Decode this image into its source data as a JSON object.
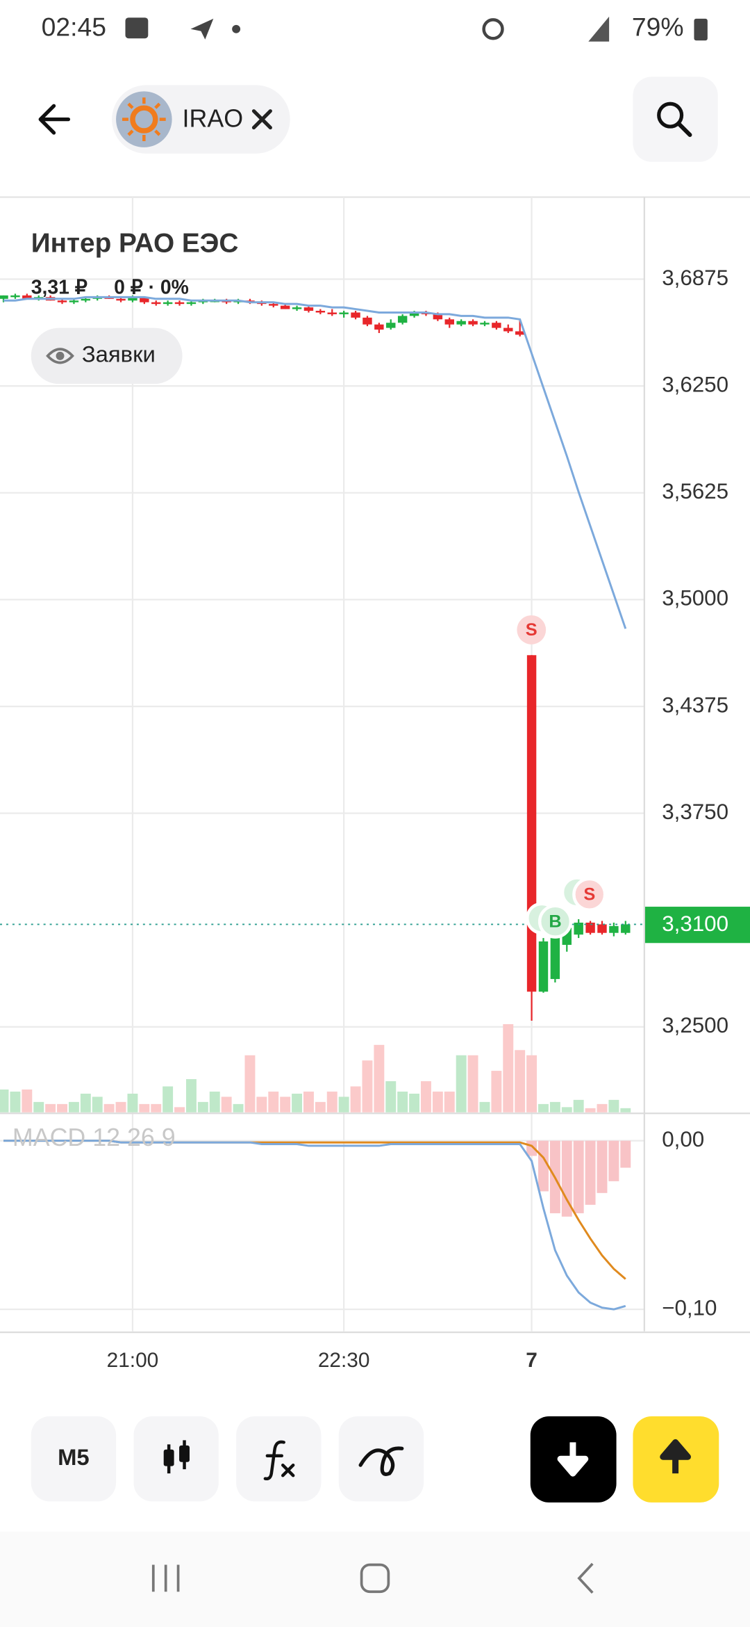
{
  "status_bar": {
    "time": "02:45",
    "battery": "79%"
  },
  "header": {
    "ticker": "IRAO"
  },
  "chart_controls": {
    "orders": "Заявки",
    "interval": "M5"
  },
  "trade_markers": [
    "S",
    "B",
    "S"
  ],
  "chart_data": [
    {
      "type": "candlestick",
      "title": "Интер РАО ЕЭС",
      "price": "3,31 ₽",
      "change": "0 ₽ · 0%",
      "categories": [
        null,
        null,
        null,
        null,
        null,
        null,
        null,
        null,
        null,
        null,
        null,
        "21:00",
        null,
        null,
        null,
        null,
        null,
        null,
        null,
        null,
        null,
        null,
        null,
        null,
        null,
        null,
        null,
        null,
        null,
        "22:30",
        null,
        null,
        null,
        null,
        null,
        null,
        null,
        null,
        null,
        null,
        null,
        null,
        null,
        null,
        null,
        "7",
        null,
        null,
        null,
        null,
        null,
        null,
        null,
        null
      ],
      "candles": [
        [
          3.676,
          3.678,
          3.674,
          3.678
        ],
        [
          3.677,
          3.679,
          3.676,
          3.678
        ],
        [
          3.678,
          3.679,
          3.676,
          3.676
        ],
        [
          3.676,
          3.678,
          3.675,
          3.677
        ],
        [
          3.677,
          3.678,
          3.675,
          3.675
        ],
        [
          3.675,
          3.676,
          3.673,
          3.674
        ],
        [
          3.674,
          3.676,
          3.673,
          3.675
        ],
        [
          3.675,
          3.677,
          3.674,
          3.676
        ],
        [
          3.676,
          3.678,
          3.675,
          3.677
        ],
        [
          3.677,
          3.678,
          3.676,
          3.676
        ],
        [
          3.676,
          3.677,
          3.674,
          3.675
        ],
        [
          3.675,
          3.678,
          3.674,
          3.677
        ],
        [
          3.677,
          3.677,
          3.673,
          3.674
        ],
        [
          3.674,
          3.675,
          3.672,
          3.673
        ],
        [
          3.673,
          3.675,
          3.672,
          3.674
        ],
        [
          3.674,
          3.675,
          3.672,
          3.673
        ],
        [
          3.673,
          3.675,
          3.672,
          3.674
        ],
        [
          3.674,
          3.676,
          3.673,
          3.675
        ],
        [
          3.675,
          3.676,
          3.674,
          3.675
        ],
        [
          3.675,
          3.676,
          3.673,
          3.674
        ],
        [
          3.674,
          3.676,
          3.673,
          3.675
        ],
        [
          3.675,
          3.676,
          3.673,
          3.674
        ],
        [
          3.674,
          3.675,
          3.672,
          3.673
        ],
        [
          3.673,
          3.674,
          3.671,
          3.672
        ],
        [
          3.672,
          3.673,
          3.67,
          3.67
        ],
        [
          3.67,
          3.672,
          3.669,
          3.671
        ],
        [
          3.671,
          3.672,
          3.668,
          3.669
        ],
        [
          3.669,
          3.67,
          3.667,
          3.668
        ],
        [
          3.668,
          3.67,
          3.666,
          3.667
        ],
        [
          3.667,
          3.669,
          3.665,
          3.668
        ],
        [
          3.668,
          3.669,
          3.664,
          3.665
        ],
        [
          3.665,
          3.666,
          3.66,
          3.661
        ],
        [
          3.661,
          3.662,
          3.656,
          3.658
        ],
        [
          3.659,
          3.664,
          3.658,
          3.662
        ],
        [
          3.662,
          3.667,
          3.661,
          3.666
        ],
        [
          3.666,
          3.669,
          3.665,
          3.668
        ],
        [
          3.668,
          3.669,
          3.666,
          3.667
        ],
        [
          3.667,
          3.668,
          3.663,
          3.664
        ],
        [
          3.664,
          3.665,
          3.659,
          3.661
        ],
        [
          3.661,
          3.664,
          3.66,
          3.663
        ],
        [
          3.663,
          3.664,
          3.66,
          3.661
        ],
        [
          3.661,
          3.663,
          3.66,
          3.662
        ],
        [
          3.662,
          3.663,
          3.658,
          3.659
        ],
        [
          3.659,
          3.661,
          3.656,
          3.657
        ],
        [
          3.657,
          3.664,
          3.654,
          3.655
        ],
        [
          3.4675,
          3.4675,
          3.2536,
          3.2706
        ],
        [
          3.2706,
          3.302,
          3.27,
          3.3
        ],
        [
          3.278,
          3.305,
          3.276,
          3.302
        ],
        [
          3.298,
          3.312,
          3.294,
          3.308
        ],
        [
          3.304,
          3.313,
          3.302,
          3.311
        ],
        [
          3.311,
          3.312,
          3.304,
          3.305
        ],
        [
          3.31,
          3.312,
          3.304,
          3.305
        ],
        [
          3.305,
          3.311,
          3.303,
          3.309
        ],
        [
          3.305,
          3.312,
          3.304,
          3.31
        ]
      ],
      "ma": [
        3.675,
        3.675,
        3.676,
        3.676,
        3.676,
        3.676,
        3.676,
        3.677,
        3.677,
        3.677,
        3.677,
        3.677,
        3.677,
        3.676,
        3.676,
        3.676,
        3.675,
        3.675,
        3.675,
        3.675,
        3.675,
        3.674,
        3.674,
        3.674,
        3.673,
        3.673,
        3.672,
        3.672,
        3.671,
        3.671,
        3.67,
        3.669,
        3.668,
        3.668,
        3.668,
        3.668,
        3.668,
        3.667,
        3.667,
        3.666,
        3.666,
        3.665,
        3.665,
        3.665,
        3.664,
        3.644,
        3.624,
        3.604,
        3.584,
        3.563,
        3.543,
        3.523,
        3.503,
        3.483
      ],
      "volumes": [
        22,
        20,
        22,
        10,
        8,
        8,
        10,
        18,
        15,
        8,
        10,
        18,
        8,
        8,
        25,
        5,
        32,
        10,
        20,
        15,
        8,
        55,
        15,
        20,
        15,
        18,
        20,
        10,
        20,
        15,
        25,
        50,
        65,
        30,
        20,
        18,
        30,
        20,
        20,
        55,
        55,
        10,
        40,
        85,
        60,
        55,
        8,
        10,
        5,
        12,
        4,
        8,
        12,
        4
      ],
      "up_color": "#1fb243",
      "down_color": "#e8262a",
      "ma_color": "#7ca9dc",
      "volume_up_color": "#bfe8c9",
      "volume_down_color": "#fbcaca",
      "ylim": [
        3.2,
        3.7355
      ],
      "yticks": [
        {
          "value": 3.25,
          "label": "3,2500"
        },
        {
          "value": 3.375,
          "label": "3,3750"
        },
        {
          "value": 3.4375,
          "label": "3,4375"
        },
        {
          "value": 3.5,
          "label": "3,5000"
        },
        {
          "value": 3.5625,
          "label": "3,5625"
        },
        {
          "value": 3.625,
          "label": "3,6250"
        },
        {
          "value": 3.6875,
          "label": "3,6875"
        }
      ],
      "last_price": {
        "value": 3.31,
        "label": "3,3100"
      },
      "grid": true
    },
    {
      "type": "macd",
      "title": "MACD 12 26 9",
      "macd": [
        0,
        0,
        0,
        0,
        0,
        0,
        0,
        0,
        0,
        0,
        -0.001,
        -0.001,
        -0.001,
        -0.001,
        -0.001,
        -0.001,
        -0.001,
        -0.001,
        -0.001,
        -0.001,
        -0.001,
        -0.001,
        -0.002,
        -0.002,
        -0.002,
        -0.002,
        -0.003,
        -0.003,
        -0.003,
        -0.003,
        -0.003,
        -0.003,
        -0.003,
        -0.002,
        -0.002,
        -0.002,
        -0.002,
        -0.002,
        -0.002,
        -0.002,
        -0.002,
        -0.002,
        -0.002,
        -0.002,
        -0.002,
        -0.012,
        -0.04,
        -0.065,
        -0.08,
        -0.09,
        -0.096,
        -0.099,
        -0.1,
        -0.098
      ],
      "signal": [
        0,
        0,
        0,
        0,
        0,
        0,
        0,
        0,
        0,
        0,
        -0.001,
        -0.001,
        -0.001,
        -0.001,
        -0.001,
        -0.001,
        -0.001,
        -0.001,
        -0.001,
        -0.001,
        -0.001,
        -0.001,
        -0.001,
        -0.001,
        -0.001,
        -0.001,
        -0.001,
        -0.001,
        -0.001,
        -0.001,
        -0.001,
        -0.001,
        -0.001,
        -0.001,
        -0.001,
        -0.001,
        -0.001,
        -0.001,
        -0.001,
        -0.001,
        -0.001,
        -0.001,
        -0.001,
        -0.001,
        -0.001,
        -0.003,
        -0.01,
        -0.022,
        -0.035,
        -0.047,
        -0.058,
        -0.068,
        -0.076,
        -0.082
      ],
      "histogram": [
        null,
        null,
        null,
        null,
        null,
        null,
        null,
        null,
        null,
        null,
        null,
        null,
        null,
        null,
        null,
        null,
        null,
        null,
        null,
        null,
        null,
        null,
        null,
        null,
        null,
        null,
        null,
        null,
        null,
        null,
        null,
        null,
        null,
        null,
        null,
        null,
        null,
        null,
        null,
        null,
        null,
        null,
        null,
        null,
        null,
        -0.009,
        -0.03,
        -0.043,
        -0.045,
        -0.043,
        -0.038,
        -0.031,
        -0.024,
        -0.016
      ],
      "macd_color": "#7ca9dc",
      "signal_color": "#e08a1e",
      "histogram_color": "#f8c3c6",
      "ylim": [
        -0.113,
        0.015
      ],
      "yticks": [
        {
          "value": 0,
          "label": "0,00"
        },
        {
          "value": -0.1,
          "label": "−0,10"
        }
      ]
    }
  ]
}
